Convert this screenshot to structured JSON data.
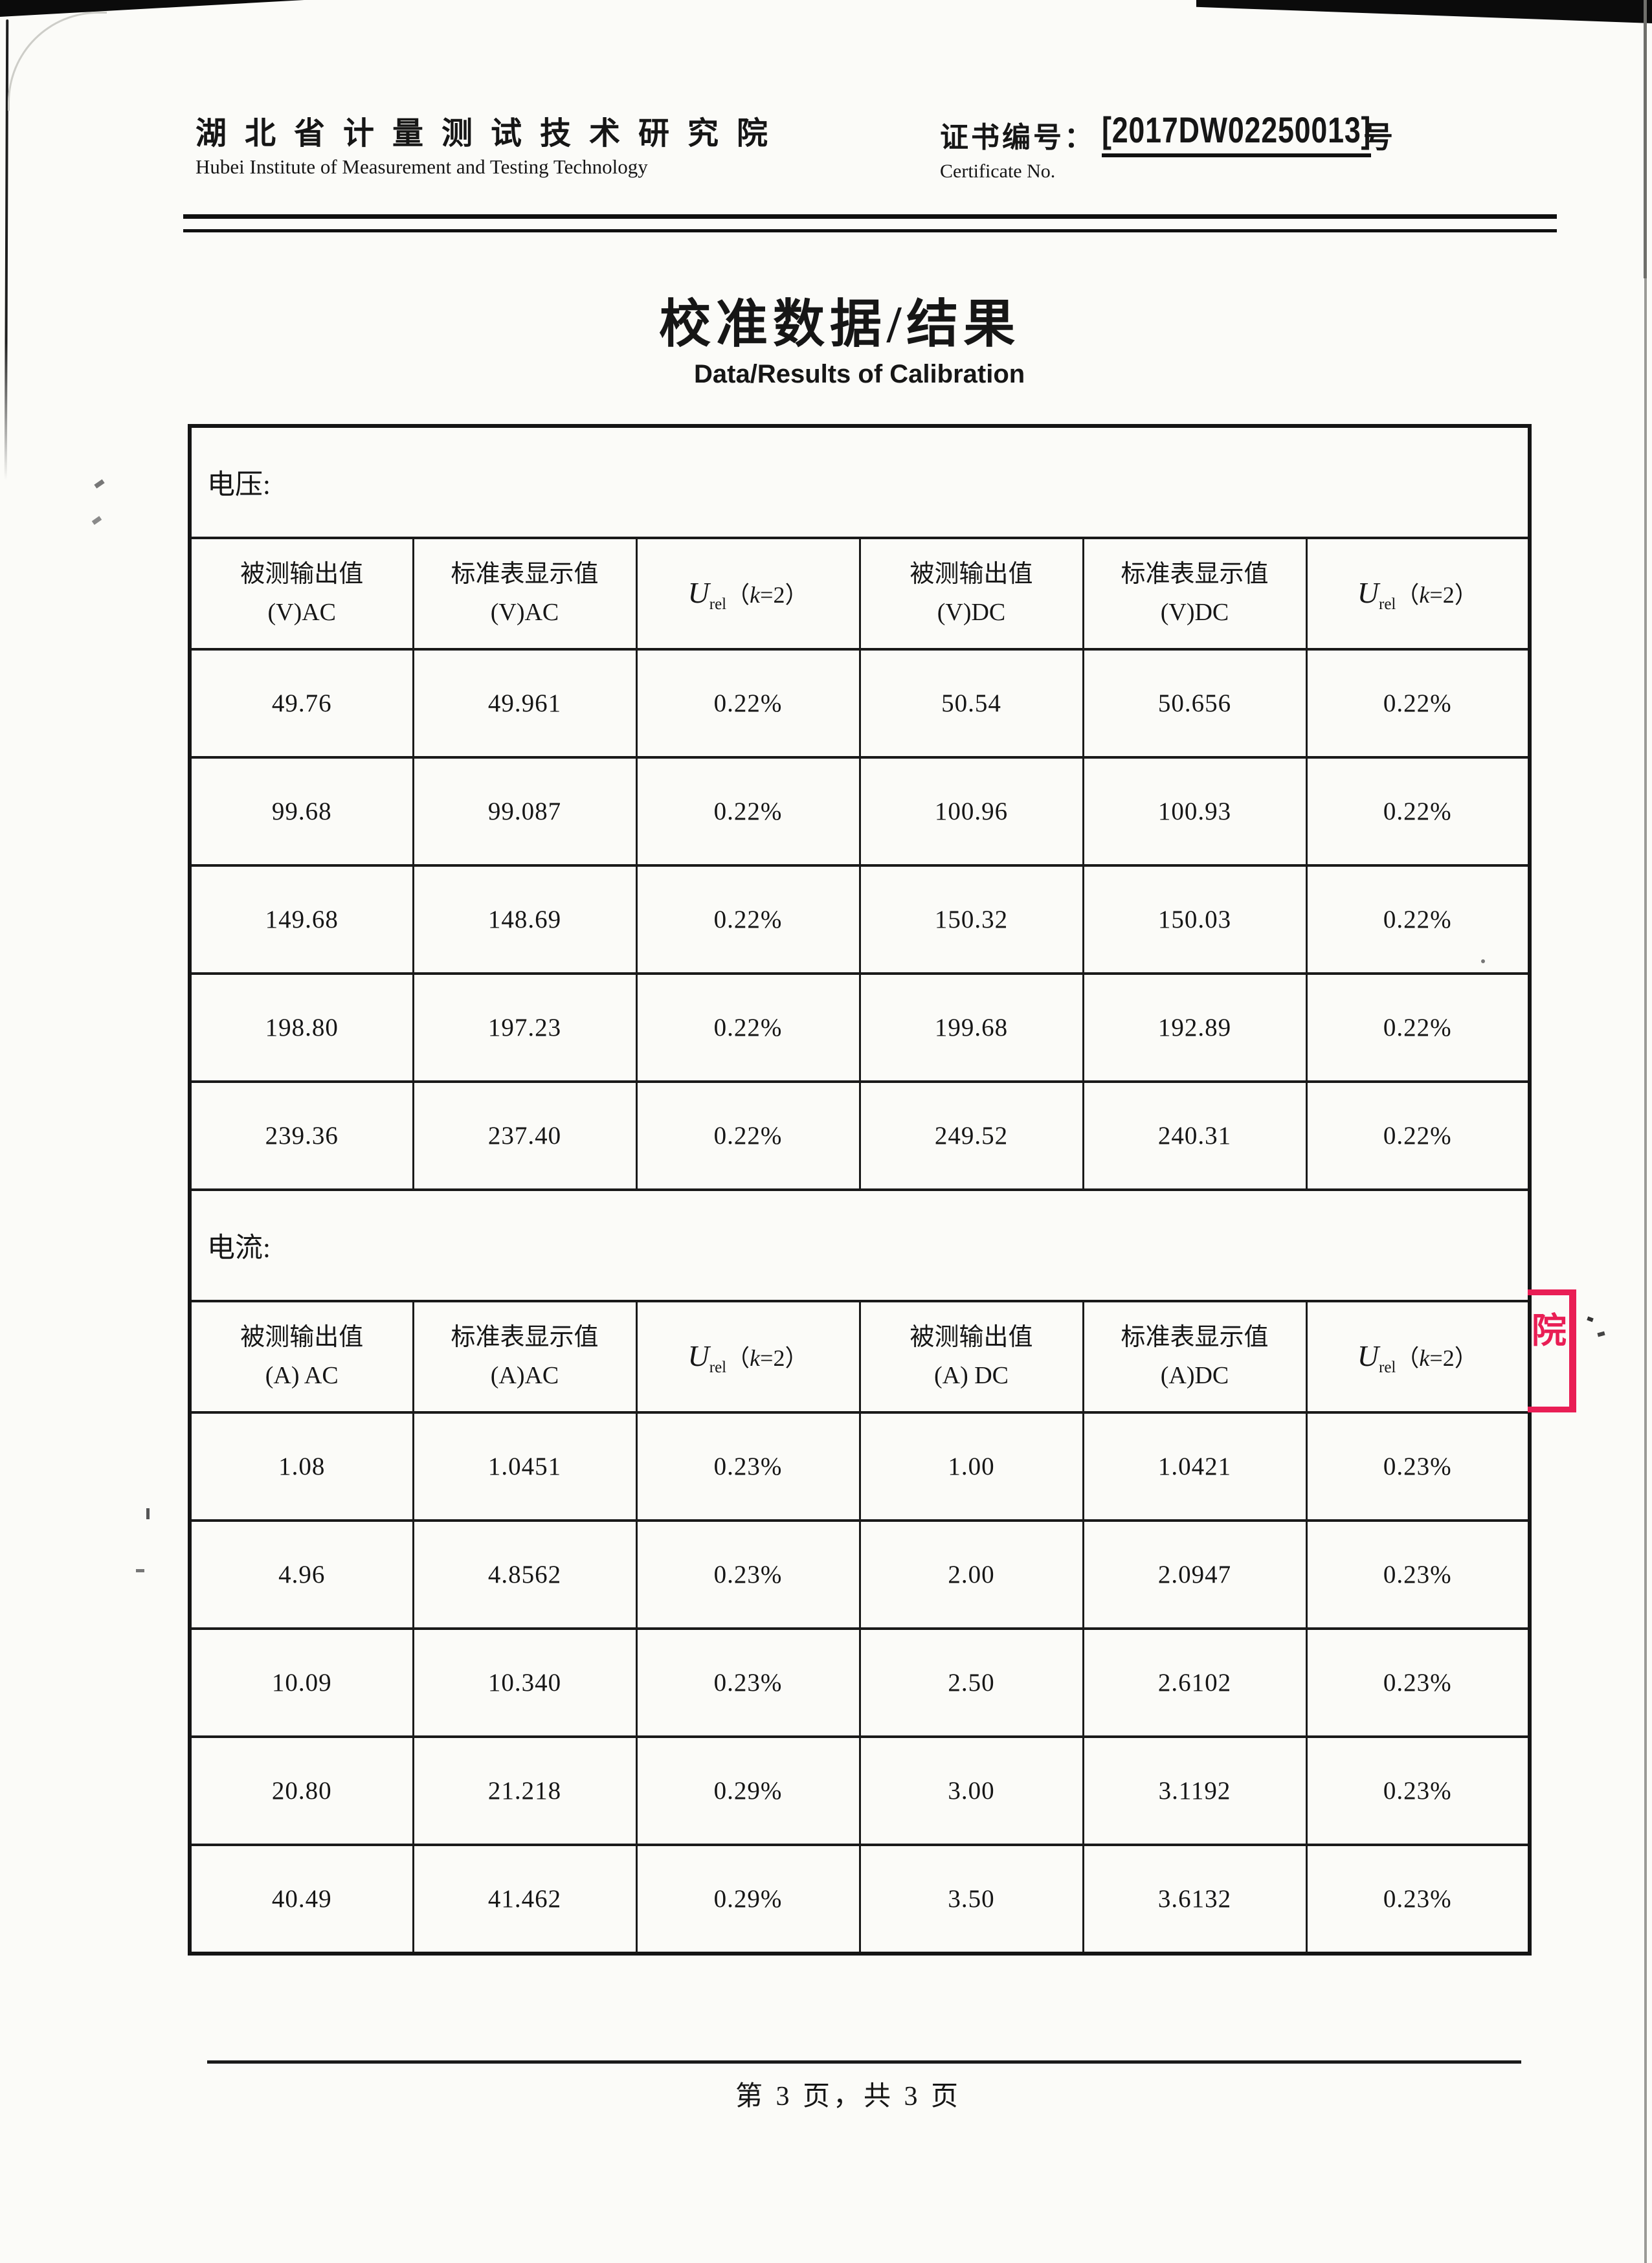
{
  "header": {
    "institute_cn": "湖北省计量测试技术研究院",
    "institute_en": "Hubei Institute of Measurement and Testing Technology",
    "cert_label_cn": "证书编号：",
    "cert_label_en": "Certificate No.",
    "cert_number": "[2017DW02250013]",
    "cert_number_suffix": "号"
  },
  "title": {
    "cn": "校准数据/结果",
    "en": "Data/Results of Calibration"
  },
  "urel": {
    "u": "U",
    "sub": "rel",
    "open": "（",
    "k": "k",
    "close": "=2）"
  },
  "tables": [
    {
      "id": "voltage",
      "section_label": "电压:",
      "headers": [
        {
          "t1": "被测输出值",
          "t2": "(V)AC"
        },
        {
          "t1": "标准表显示值",
          "t2": "(V)AC"
        },
        {
          "urel": true
        },
        {
          "t1": "被测输出值",
          "t2": "(V)DC"
        },
        {
          "t1": "标准表显示值",
          "t2": "(V)DC"
        },
        {
          "urel": true
        }
      ],
      "rows": [
        [
          "49.76",
          "49.961",
          "0.22%",
          "50.54",
          "50.656",
          "0.22%"
        ],
        [
          "99.68",
          "99.087",
          "0.22%",
          "100.96",
          "100.93",
          "0.22%"
        ],
        [
          "149.68",
          "148.69",
          "0.22%",
          "150.32",
          "150.03",
          "0.22%"
        ],
        [
          "198.80",
          "197.23",
          "0.22%",
          "199.68",
          "192.89",
          "0.22%"
        ],
        [
          "239.36",
          "237.40",
          "0.22%",
          "249.52",
          "240.31",
          "0.22%"
        ]
      ]
    },
    {
      "id": "current",
      "section_label": "电流:",
      "headers": [
        {
          "t1": "被测输出值",
          "t2": "(A) AC"
        },
        {
          "t1": "标准表显示值",
          "t2": "(A)AC"
        },
        {
          "urel": true
        },
        {
          "t1": "被测输出值",
          "t2": "(A) DC"
        },
        {
          "t1": "标准表显示值",
          "t2": "(A)DC"
        },
        {
          "urel": true
        }
      ],
      "rows": [
        [
          "1.08",
          "1.0451",
          "0.23%",
          "1.00",
          "1.0421",
          "0.23%"
        ],
        [
          "4.96",
          "4.8562",
          "0.23%",
          "2.00",
          "2.0947",
          "0.23%"
        ],
        [
          "10.09",
          "10.340",
          "0.23%",
          "2.50",
          "2.6102",
          "0.23%"
        ],
        [
          "20.80",
          "21.218",
          "0.29%",
          "3.00",
          "3.1192",
          "0.23%"
        ],
        [
          "40.49",
          "41.462",
          "0.29%",
          "3.50",
          "3.6132",
          "0.23%"
        ]
      ]
    }
  ],
  "stamp": {
    "char": "院",
    "color": "#e91e55"
  },
  "footer": {
    "text": "第 3 页，共 3 页"
  }
}
